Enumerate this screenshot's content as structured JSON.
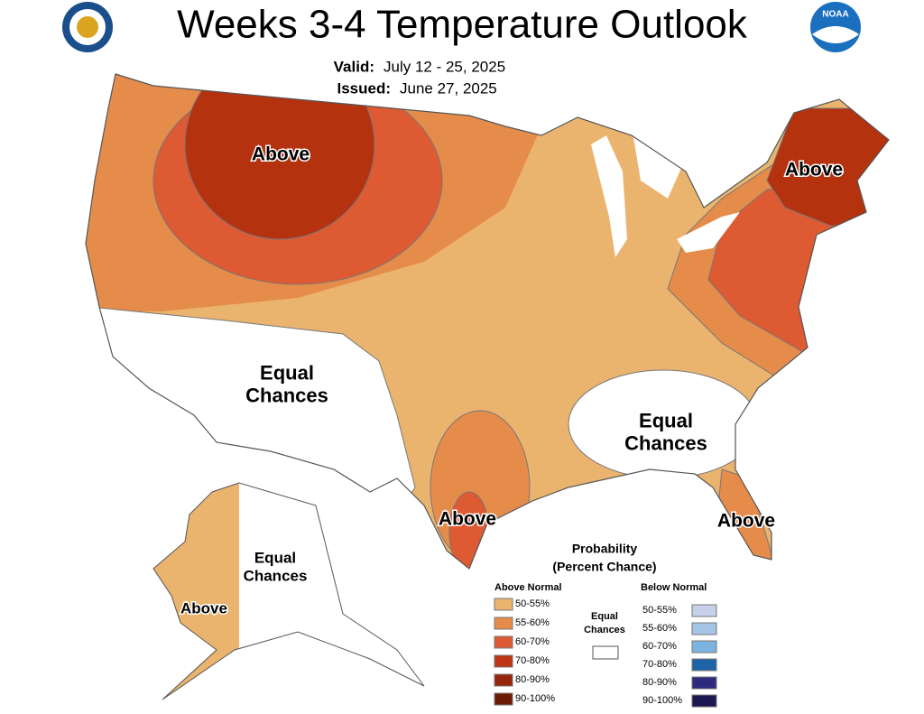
{
  "header": {
    "title": "Weeks 3-4 Temperature Outlook",
    "valid_label": "Valid:",
    "valid_value": "July 12 - 25, 2025",
    "issued_label": "Issued:",
    "issued_value": "June 27, 2025",
    "logo_text": "NOAA"
  },
  "map_labels": [
    {
      "lines": [
        "Above"
      ]
    },
    {
      "lines": [
        "Above"
      ]
    },
    {
      "lines": [
        "Equal",
        "Chances"
      ]
    },
    {
      "lines": [
        "Equal",
        "Chances"
      ]
    },
    {
      "lines": [
        "Above"
      ]
    },
    {
      "lines": [
        "Above"
      ]
    },
    {
      "lines": [
        "Equal",
        "Chances"
      ]
    },
    {
      "lines": [
        "Above"
      ]
    }
  ],
  "legend": {
    "title": [
      "Probability",
      "(Percent Chance)"
    ],
    "above_title": "Above Normal",
    "above": [
      {
        "label": "50-55%",
        "color": "#eab46f"
      },
      {
        "label": "55-60%",
        "color": "#e68c4b"
      },
      {
        "label": "60-70%",
        "color": "#dd5a33"
      },
      {
        "label": "70-80%",
        "color": "#bd3515"
      },
      {
        "label": "80-90%",
        "color": "#96250b"
      },
      {
        "label": "90-100%",
        "color": "#6b1b06"
      }
    ],
    "equal_title": [
      "Equal",
      "Chances"
    ],
    "below_title": "Below Normal",
    "below": [
      {
        "label": "50-55%",
        "color": "#c6d0e8"
      },
      {
        "label": "55-60%",
        "color": "#a4c5e6"
      },
      {
        "label": "60-70%",
        "color": "#7db3e0"
      },
      {
        "label": "70-80%",
        "color": "#1f63a7"
      },
      {
        "label": "80-90%",
        "color": "#302a7e"
      },
      {
        "label": "90-100%",
        "color": "#1c1850"
      }
    ]
  }
}
